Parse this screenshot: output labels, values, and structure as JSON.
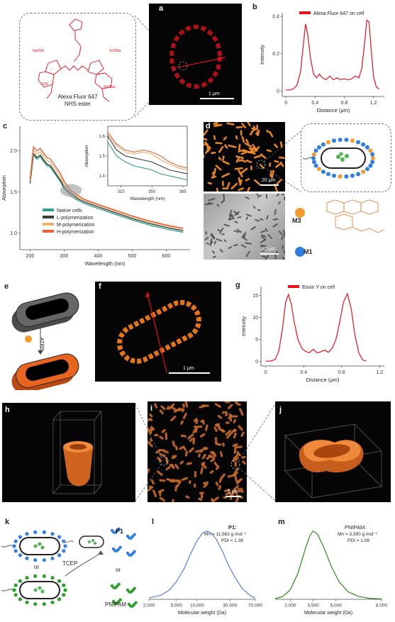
{
  "panels": {
    "a": {
      "label": "a",
      "scale_bar": "1 μm"
    },
    "b": {
      "label": "b",
      "legend": "Alexa Fluor 647 on cell"
    },
    "c": {
      "label": "c"
    },
    "d": {
      "label": "d",
      "scale_bar_top": "20 μm",
      "scale_bar_bottom": "20 μm",
      "m3_label": "M3",
      "m1_label": "M1"
    },
    "e": {
      "label": "e",
      "atrp_label": "ATRP"
    },
    "f": {
      "label": "f",
      "scale_bar": "1 μm"
    },
    "g": {
      "label": "g",
      "legend": "Eosin Y on cell"
    },
    "h": {
      "label": "h"
    },
    "i": {
      "label": "i",
      "scale_bar": "5 μm"
    },
    "j": {
      "label": "j"
    },
    "k": {
      "label": "k",
      "or_top": "or",
      "tcep_label": "TCEP",
      "p1_label": "P1",
      "or_right": "or",
      "pnipam_label": "PNIPAM"
    },
    "l": {
      "label": "l",
      "polymer": "P1:",
      "mn_text": "Mn = 11,563 g mol⁻¹",
      "pdi_text": "PDI = 1.38"
    },
    "m": {
      "label": "m",
      "polymer": "PNIPAM:",
      "mn_text": "Mn = 3,390 g mol⁻¹",
      "pdi_text": "PDI = 1.08"
    }
  },
  "dye_structure": {
    "name_line1": "Alexa Fluor 647",
    "name_line2": "NHS ester",
    "groups": [
      "NaO3S",
      "SO3Na",
      "O3S",
      "SO3Na"
    ]
  },
  "chart_data": [
    {
      "panel": "b",
      "type": "line",
      "title": "",
      "xlabel": "Distance (μm)",
      "ylabel": "Intensity",
      "xlim": [
        -0.05,
        1.35
      ],
      "ylim": [
        -0.03,
        0.42
      ],
      "xticks": [
        0,
        0.4,
        0.8,
        1.2
      ],
      "xtick_labels": [
        "0",
        "0.4",
        "0.8",
        "1.2"
      ],
      "yticks": [
        0,
        0.2,
        0.4
      ],
      "ytick_labels": [
        "0",
        "0.2",
        "0.4"
      ],
      "color": "#e8101a",
      "series": [
        {
          "name": "Alexa Fluor 647 on cell",
          "x": [
            0,
            0.05,
            0.1,
            0.15,
            0.2,
            0.24,
            0.27,
            0.3,
            0.34,
            0.38,
            0.42,
            0.46,
            0.5,
            0.55,
            0.6,
            0.65,
            0.7,
            0.75,
            0.8,
            0.85,
            0.9,
            0.95,
            1.0,
            1.04,
            1.08,
            1.11,
            1.14,
            1.17,
            1.2,
            1.24,
            1.28
          ],
          "y": [
            0.005,
            0.005,
            0.01,
            0.03,
            0.1,
            0.25,
            0.36,
            0.3,
            0.17,
            0.09,
            0.07,
            0.09,
            0.07,
            0.06,
            0.08,
            0.06,
            0.07,
            0.06,
            0.065,
            0.06,
            0.065,
            0.08,
            0.07,
            0.12,
            0.26,
            0.38,
            0.37,
            0.22,
            0.08,
            0.02,
            0.01
          ]
        }
      ]
    },
    {
      "panel": "c",
      "type": "line",
      "title": "",
      "xlabel": "Wavelength (nm)",
      "ylabel": "Absorption",
      "xlim": [
        170,
        670
      ],
      "ylim": [
        0.8,
        2.3
      ],
      "xticks": [
        200,
        300,
        400,
        500,
        600
      ],
      "xtick_labels": [
        "200",
        "300",
        "400",
        "500",
        "600"
      ],
      "yticks": [
        1.0,
        1.5,
        2.0
      ],
      "ytick_labels": [
        "1.0",
        "1.5",
        "2.0"
      ],
      "legend_position": "bottom-left",
      "x": [
        200,
        210,
        220,
        230,
        240,
        250,
        260,
        270,
        280,
        290,
        300,
        320,
        340,
        360,
        400,
        450,
        500,
        550,
        600,
        650
      ],
      "series": [
        {
          "name": "Native cells",
          "color": "#2f9e8a",
          "values": [
            1.6,
            1.95,
            1.9,
            1.93,
            1.87,
            1.82,
            1.8,
            1.74,
            1.68,
            1.62,
            1.54,
            1.45,
            1.4,
            1.36,
            1.3,
            1.23,
            1.16,
            1.1,
            1.05,
            1.01
          ]
        },
        {
          "name": "L-polymerization",
          "color": "#3a3a3a",
          "values": [
            1.62,
            1.97,
            1.92,
            1.95,
            1.89,
            1.84,
            1.82,
            1.76,
            1.7,
            1.64,
            1.56,
            1.48,
            1.42,
            1.38,
            1.32,
            1.25,
            1.18,
            1.12,
            1.07,
            1.03
          ]
        },
        {
          "name": "M-polymerization",
          "color": "#e7b46c",
          "values": [
            1.64,
            2.01,
            1.96,
            1.99,
            1.93,
            1.88,
            1.86,
            1.8,
            1.74,
            1.68,
            1.6,
            1.5,
            1.44,
            1.4,
            1.34,
            1.27,
            1.2,
            1.14,
            1.09,
            1.05
          ]
        },
        {
          "name": "H-polymerization",
          "color": "#e8613a",
          "values": [
            1.66,
            2.05,
            2.0,
            2.03,
            1.97,
            1.92,
            1.9,
            1.84,
            1.78,
            1.72,
            1.63,
            1.52,
            1.46,
            1.41,
            1.35,
            1.28,
            1.21,
            1.15,
            1.1,
            1.06
          ]
        }
      ]
    },
    {
      "panel": "c-inset",
      "type": "line",
      "title": "",
      "xlabel": "Wavelength (nm)",
      "ylabel": "Absorption",
      "xlim": [
        300,
        390
      ],
      "ylim": [
        1.35,
        1.65
      ],
      "xticks": [
        315,
        350,
        385
      ],
      "xtick_labels": [
        "315",
        "350",
        "385"
      ],
      "yticks": [
        1.4,
        1.5,
        1.6
      ],
      "ytick_labels": [
        "1.4",
        "1.5",
        "1.6"
      ],
      "x": [
        300,
        310,
        320,
        330,
        340,
        350,
        360,
        370,
        380,
        390
      ],
      "series": [
        {
          "name": "Native cells",
          "color": "#2f9e8a",
          "values": [
            1.57,
            1.5,
            1.47,
            1.45,
            1.44,
            1.43,
            1.41,
            1.4,
            1.39,
            1.38
          ]
        },
        {
          "name": "L-polymerization",
          "color": "#3a3a3a",
          "values": [
            1.6,
            1.53,
            1.5,
            1.49,
            1.48,
            1.47,
            1.45,
            1.43,
            1.42,
            1.41
          ]
        },
        {
          "name": "M-polymerization",
          "color": "#e7b46c",
          "values": [
            1.61,
            1.55,
            1.52,
            1.51,
            1.52,
            1.51,
            1.48,
            1.46,
            1.44,
            1.43
          ]
        },
        {
          "name": "H-polymerization",
          "color": "#e8613a",
          "values": [
            1.62,
            1.56,
            1.53,
            1.52,
            1.53,
            1.52,
            1.5,
            1.47,
            1.45,
            1.44
          ]
        }
      ]
    },
    {
      "panel": "g",
      "type": "line",
      "title": "",
      "xlabel": "Distance (μm)",
      "ylabel": "Intensity",
      "xlim": [
        -0.05,
        1.25
      ],
      "ylim": [
        -1,
        17
      ],
      "xticks": [
        0,
        0.4,
        0.8,
        1.2
      ],
      "xtick_labels": [
        "0",
        "0.4",
        "0.8",
        "1.2"
      ],
      "yticks": [
        0,
        5,
        10,
        15
      ],
      "ytick_labels": [
        "0",
        "5",
        "10",
        "15"
      ],
      "color": "#e8101a",
      "series": [
        {
          "name": "Eosin Y on cell",
          "x": [
            0,
            0.05,
            0.1,
            0.14,
            0.18,
            0.21,
            0.24,
            0.27,
            0.3,
            0.34,
            0.38,
            0.42,
            0.46,
            0.5,
            0.54,
            0.58,
            0.62,
            0.66,
            0.7,
            0.74,
            0.78,
            0.82,
            0.86,
            0.9,
            0.94,
            0.98,
            1.02,
            1.06
          ],
          "y": [
            0.1,
            0.1,
            0.5,
            2.5,
            8,
            13.5,
            15.2,
            13,
            9,
            5,
            3,
            2.3,
            2,
            2.8,
            2,
            2.2,
            2.6,
            2.1,
            3,
            5,
            9,
            13.5,
            15.4,
            12,
            6,
            2,
            0.4,
            0.1
          ]
        }
      ]
    },
    {
      "panel": "l",
      "type": "line",
      "title": "",
      "xlabel": "Molecular weight (Da)",
      "ylabel": "",
      "xscale": "log",
      "xlim": [
        2000,
        70000
      ],
      "xticks": [
        2000,
        5000,
        10000,
        30000,
        70000
      ],
      "xtick_labels": [
        "2,000",
        "5,000",
        "10,000",
        "30,000",
        "70,000"
      ],
      "color": "#5b7fe0",
      "series": [
        {
          "name": "",
          "x": [
            2000,
            3000,
            4000,
            5000,
            6500,
            8000,
            10000,
            12000,
            14000,
            16000,
            19000,
            23000,
            28000,
            35000,
            45000,
            60000,
            70000
          ],
          "y": [
            0.02,
            0.06,
            0.14,
            0.26,
            0.45,
            0.66,
            0.86,
            0.97,
            1.0,
            0.97,
            0.88,
            0.72,
            0.52,
            0.33,
            0.16,
            0.05,
            0.02
          ]
        }
      ]
    },
    {
      "panel": "m",
      "type": "line",
      "title": "",
      "xlabel": "Molecular weight (Da)",
      "ylabel": "",
      "xlim": [
        1000,
        8000
      ],
      "xticks": [
        2000,
        3500,
        5000,
        8000
      ],
      "xtick_labels": [
        "2,000",
        "3,500",
        "5,000",
        "8,000"
      ],
      "color": "#2c8c1c",
      "series": [
        {
          "name": "",
          "x": [
            1000,
            1500,
            2000,
            2500,
            3000,
            3300,
            3500,
            3800,
            4200,
            4700,
            5200,
            5800,
            6500,
            7200,
            8000
          ],
          "y": [
            0.01,
            0.04,
            0.14,
            0.38,
            0.75,
            0.94,
            1.0,
            0.95,
            0.76,
            0.48,
            0.26,
            0.11,
            0.04,
            0.015,
            0.005
          ]
        }
      ]
    }
  ]
}
